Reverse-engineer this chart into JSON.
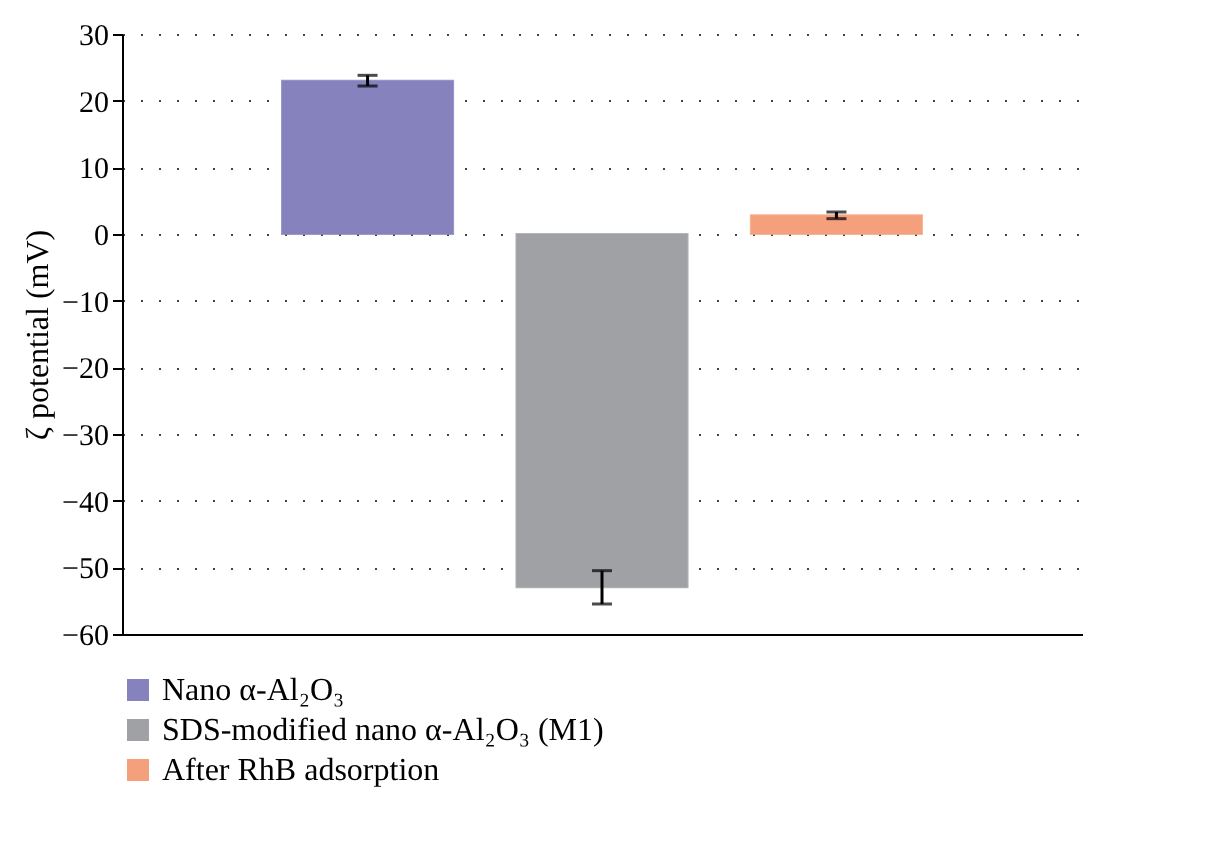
{
  "chart_data": {
    "type": "bar",
    "ylabel": "ζ potential (mV)",
    "categories": [
      null
    ],
    "series": [
      {
        "name": "Nano α-Al₂O₃",
        "color": "#8582bd",
        "values": [
          23
        ],
        "errors": [
          0.8
        ]
      },
      {
        "name": "SDS-modified nano α-Al₂O₃ (M1)",
        "color": "#a0a1a4",
        "values": [
          -53
        ],
        "errors": [
          2.5
        ]
      },
      {
        "name": "After RhB adsorption",
        "color": "#f4a07c",
        "values": [
          2.8
        ],
        "errors": [
          0.5
        ]
      }
    ],
    "ylim": [
      -60,
      30
    ],
    "yticks": [
      -60,
      -50,
      -40,
      -30,
      -20,
      -10,
      0,
      10,
      20,
      30
    ],
    "grid": "y",
    "legend": "bottom"
  }
}
